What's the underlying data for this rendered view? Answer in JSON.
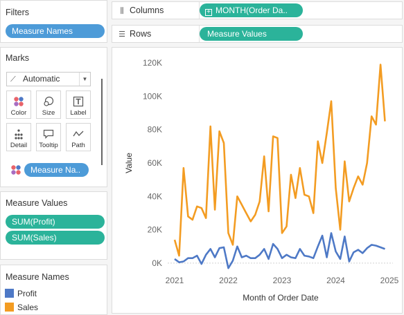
{
  "filters": {
    "title": "Filters",
    "pill": "Measure Names"
  },
  "marks": {
    "title": "Marks",
    "mark_type": "Automatic",
    "buttons": [
      {
        "label": "Color",
        "icon": "color-icon"
      },
      {
        "label": "Size",
        "icon": "size-icon"
      },
      {
        "label": "Label",
        "icon": "label-icon"
      },
      {
        "label": "Detail",
        "icon": "detail-icon"
      },
      {
        "label": "Tooltip",
        "icon": "tooltip-icon"
      },
      {
        "label": "Path",
        "icon": "path-icon"
      }
    ],
    "color_pill": "Measure Na.."
  },
  "measure_values": {
    "title": "Measure Values",
    "pills": [
      "SUM(Profit)",
      "SUM(Sales)"
    ]
  },
  "legend": {
    "title": "Measure Names",
    "items": [
      {
        "label": "Profit",
        "color": "#4e79c6"
      },
      {
        "label": "Sales",
        "color": "#f39c22"
      }
    ]
  },
  "shelves": {
    "columns_label": "Columns",
    "columns_pill": "MONTH(Order Da..",
    "rows_label": "Rows",
    "rows_pill": "Measure Values"
  },
  "chart_data": {
    "type": "line",
    "xlabel": "Month of Order Date",
    "ylabel": "Value",
    "x_ticks": [
      "2021",
      "2022",
      "2023",
      "2024",
      "2025"
    ],
    "y_ticks": [
      "0K",
      "20K",
      "40K",
      "60K",
      "80K",
      "100K",
      "120K"
    ],
    "ylim": [
      -5000,
      125000
    ],
    "x_start": "2021-01",
    "grid": false,
    "series": [
      {
        "name": "Sales",
        "color": "#f39c22",
        "values": [
          14000,
          4500,
          57000,
          28000,
          26000,
          34000,
          33000,
          27000,
          82000,
          32000,
          79000,
          72000,
          18000,
          11000,
          40000,
          35000,
          30000,
          25000,
          29000,
          37000,
          64000,
          31000,
          76000,
          75000,
          18000,
          22000,
          53000,
          39000,
          57000,
          41000,
          40000,
          30000,
          73000,
          60000,
          78000,
          97000,
          45000,
          20000,
          61000,
          37000,
          45000,
          52000,
          47000,
          60000,
          88000,
          83000,
          119000,
          85000
        ]
      },
      {
        "name": "Profit",
        "color": "#4e79c6",
        "values": [
          2500,
          500,
          1000,
          3000,
          3000,
          4500,
          -500,
          5000,
          8500,
          3500,
          9000,
          9500,
          -3000,
          1500,
          10000,
          3500,
          4500,
          3000,
          3000,
          5000,
          8500,
          2500,
          11500,
          8500,
          3000,
          5000,
          3500,
          3000,
          8500,
          4500,
          4000,
          3000,
          10000,
          16500,
          3500,
          18000,
          7000,
          2500,
          16000,
          1000,
          6500,
          8000,
          6000,
          9000,
          11000,
          10500,
          9500,
          8500
        ]
      }
    ]
  }
}
